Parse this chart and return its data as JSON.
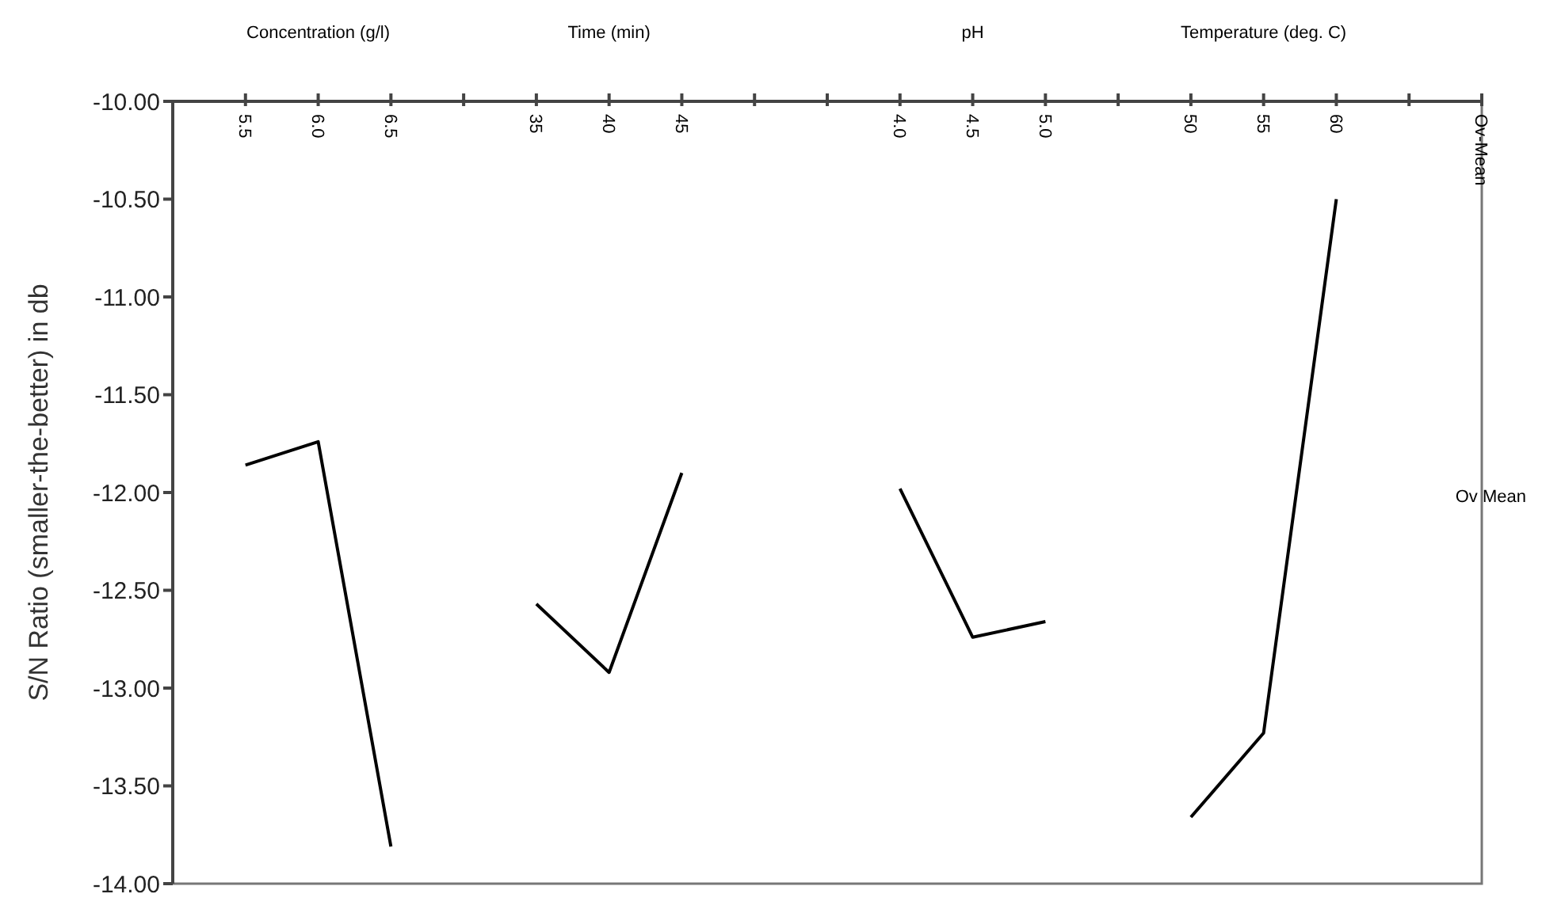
{
  "chart_data": {
    "type": "line",
    "ylabel": "S/N Ratio (smaller-the-better) in db",
    "categories": [
      "5.5",
      "6.0",
      "6.5",
      null,
      "35",
      "40",
      "45",
      null,
      null,
      "4.0",
      "4.5",
      "5.0",
      null,
      "50",
      "55",
      "60",
      null,
      "Ov-Mean"
    ],
    "series": [
      {
        "color": "#000000",
        "values": [
          -11.86,
          -11.74,
          -13.81,
          null,
          null,
          null,
          null,
          null,
          null,
          null,
          null,
          null,
          null,
          null,
          null,
          null,
          null,
          null
        ]
      },
      {
        "color": "#000000",
        "values": [
          null,
          null,
          null,
          null,
          -12.57,
          -12.92,
          -11.9,
          null,
          null,
          null,
          null,
          null,
          null,
          null,
          null,
          null,
          null,
          null
        ]
      },
      {
        "color": "#000000",
        "values": [
          null,
          null,
          null,
          null,
          null,
          null,
          null,
          null,
          null,
          -11.98,
          -12.74,
          -12.66,
          null,
          null,
          null,
          null,
          null,
          null
        ]
      },
      {
        "color": "#000000",
        "values": [
          null,
          null,
          null,
          null,
          null,
          null,
          null,
          null,
          null,
          null,
          null,
          null,
          null,
          -13.66,
          -13.23,
          -10.5,
          null,
          null
        ]
      }
    ],
    "ylim": [
      -14,
      -10
    ],
    "yticks": [
      {
        "value": -14,
        "label": "-14.00"
      },
      {
        "value": -13.5,
        "label": "-13.50"
      },
      {
        "value": -13,
        "label": "-13.00"
      },
      {
        "value": -12.5,
        "label": "-12.50"
      },
      {
        "value": -12,
        "label": "-12.00"
      },
      {
        "value": -11.5,
        "label": "-11.50"
      },
      {
        "value": -11,
        "label": "-11.00"
      },
      {
        "value": -10.5,
        "label": "-10.50"
      },
      {
        "value": -10,
        "label": "-10.00"
      }
    ],
    "grid": false,
    "annotations": [
      "Concentration (g/l)",
      "Time (min)",
      "pH",
      "Temperature (deg. C)",
      "Ov Mean"
    ]
  }
}
